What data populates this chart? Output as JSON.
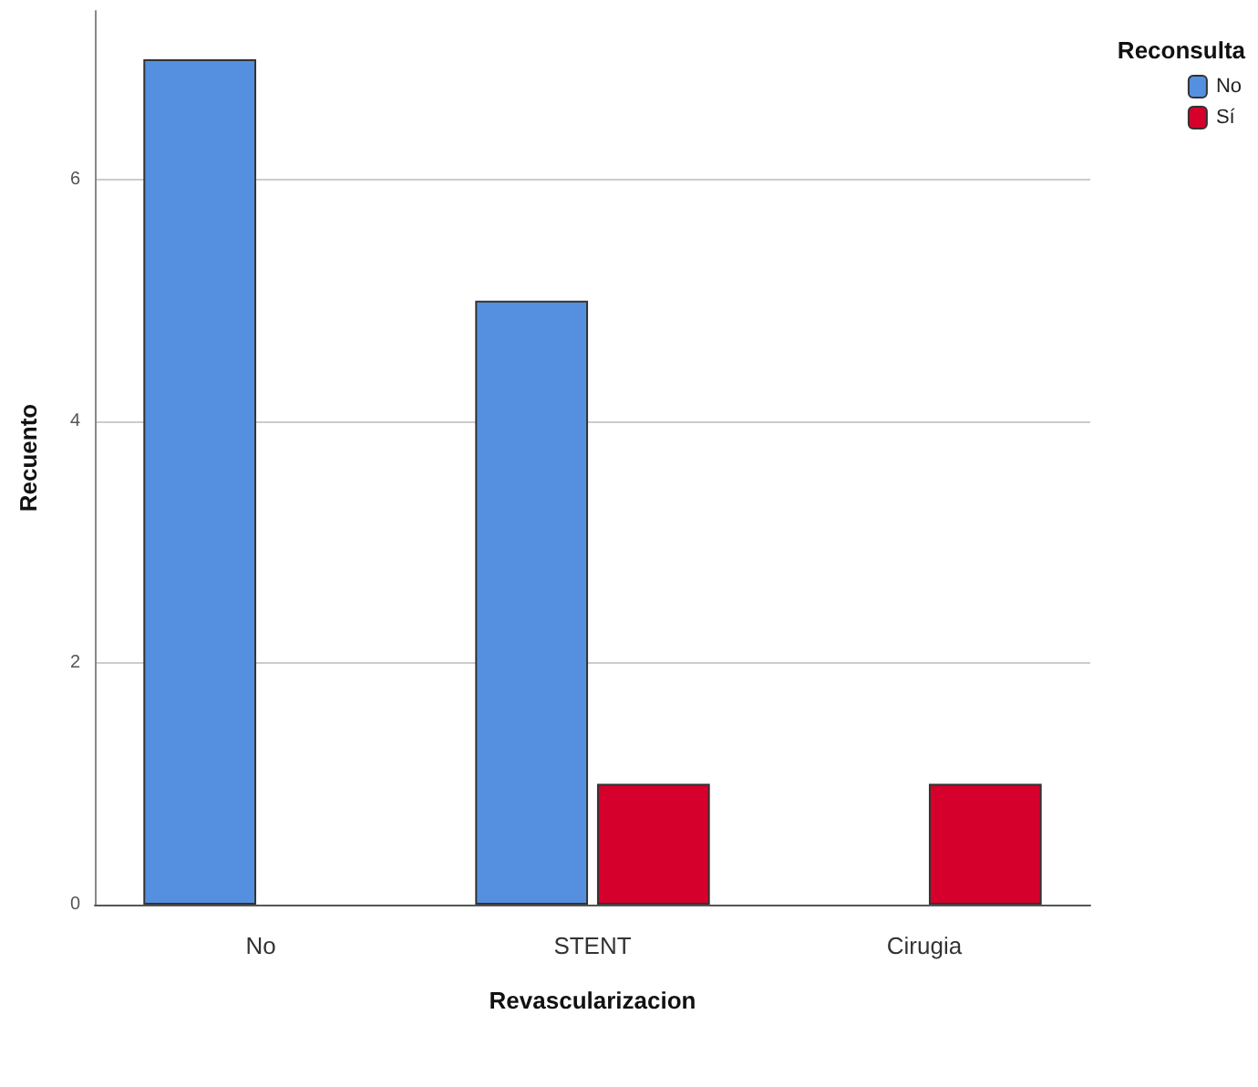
{
  "chart_data": {
    "type": "bar",
    "xlabel": "Revascularizacion",
    "ylabel": "Recuento",
    "legend_title": "Reconsulta",
    "categories": [
      "No",
      "STENT",
      "Cirugia"
    ],
    "series": [
      {
        "name": "No",
        "color": "#5590e0",
        "values": [
          7,
          5,
          null
        ]
      },
      {
        "name": "Sí",
        "color": "#d5002b",
        "values": [
          null,
          1,
          1
        ]
      }
    ],
    "ylim": [
      0,
      7.4
    ],
    "yticks": [
      0,
      2,
      4,
      6
    ],
    "grid": "y",
    "legend": "top right"
  }
}
